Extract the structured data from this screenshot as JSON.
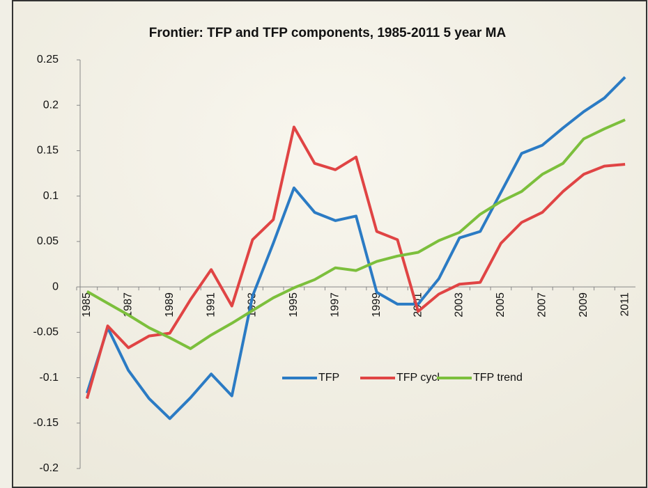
{
  "chart_data": {
    "type": "line",
    "title": "Frontier: TFP and TFP components, 1985-2011 5 year MA",
    "categories": [
      "1985",
      null,
      "1987",
      null,
      "1989",
      null,
      "1991",
      null,
      "1993",
      null,
      "1995",
      null,
      "1997",
      null,
      "1999",
      null,
      "2001",
      null,
      "2003",
      null,
      "2005",
      null,
      "2007",
      null,
      "2009",
      null,
      "2011"
    ],
    "series": [
      {
        "name": "TFP",
        "color": "#2b7bc4",
        "values": [
          -0.117,
          -0.045,
          -0.092,
          -0.123,
          -0.145,
          -0.122,
          -0.096,
          -0.12,
          -0.01,
          0.048,
          0.109,
          0.082,
          0.073,
          0.078,
          -0.006,
          -0.019,
          -0.019,
          0.009,
          0.054,
          0.061,
          0.104,
          0.147,
          0.156,
          0.175,
          0.193,
          0.208,
          0.231
        ]
      },
      {
        "name": "TFP cycl",
        "color": "#e04444",
        "values": [
          -0.123,
          -0.043,
          -0.067,
          -0.054,
          -0.051,
          -0.014,
          0.019,
          -0.021,
          0.052,
          0.074,
          0.176,
          0.136,
          0.129,
          0.143,
          0.061,
          0.052,
          -0.027,
          -0.008,
          0.003,
          0.005,
          0.048,
          0.071,
          0.082,
          0.105,
          0.124,
          0.133,
          0.135
        ]
      },
      {
        "name": "TFP trend",
        "color": "#7cbf3c",
        "values": [
          -0.005,
          -0.018,
          -0.031,
          -0.045,
          -0.056,
          -0.068,
          -0.053,
          -0.04,
          -0.026,
          -0.012,
          -0.001,
          0.008,
          0.021,
          0.018,
          0.028,
          0.034,
          0.038,
          0.051,
          0.06,
          0.08,
          0.094,
          0.105,
          0.124,
          0.136,
          0.163,
          0.174,
          0.184
        ]
      }
    ],
    "ylim": [
      -0.2,
      0.25
    ],
    "yticks": [
      0.25,
      0.2,
      0.15,
      0.1,
      0.05,
      0,
      -0.05,
      -0.1,
      -0.15,
      -0.2
    ],
    "grid": false
  }
}
